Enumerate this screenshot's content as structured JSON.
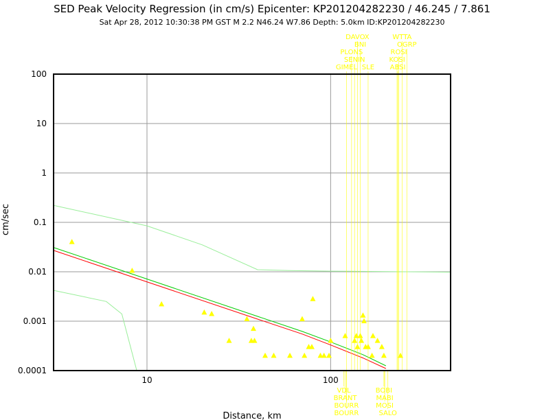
{
  "chart_data": {
    "type": "scatter",
    "title": "SED Peak Velocity Regression (in cm/s) Epicenter: KP201204282230 / 46.245 / 7.861",
    "subtitle": "Sat Apr 28, 2012 10:30:38 PM GST   M 2.2   N46.24 W7.86   Depth: 5.0km   ID:KP201204282230",
    "xlabel": "Distance, km",
    "ylabel": "cm/sec",
    "x_scale": "log",
    "y_scale": "log",
    "xlim": [
      3.1,
      450
    ],
    "ylim": [
      0.0001,
      100
    ],
    "grid": true,
    "x_ticks": [
      {
        "v": 10,
        "label": "10"
      },
      {
        "v": 100,
        "label": "100"
      }
    ],
    "y_ticks": [
      {
        "v": 100,
        "label": "100"
      },
      {
        "v": 10,
        "label": "10"
      },
      {
        "v": 1,
        "label": "1"
      },
      {
        "v": 0.1,
        "label": "0.1"
      },
      {
        "v": 0.01,
        "label": "0.01"
      },
      {
        "v": 0.001,
        "label": "0.001"
      },
      {
        "v": 0.0001,
        "label": "0.0001"
      }
    ],
    "points": [
      [
        3.9,
        0.04
      ],
      [
        8.3,
        0.0105
      ],
      [
        12,
        0.0022
      ],
      [
        20.5,
        0.0015
      ],
      [
        22.5,
        0.0014
      ],
      [
        28,
        0.0004
      ],
      [
        35,
        0.0011
      ],
      [
        37,
        0.0004
      ],
      [
        38,
        0.0007
      ],
      [
        38.5,
        0.0004
      ],
      [
        44,
        0.0002
      ],
      [
        49,
        0.0002
      ],
      [
        60,
        0.0002
      ],
      [
        70,
        0.0011
      ],
      [
        72,
        0.0002
      ],
      [
        76,
        0.0003
      ],
      [
        79,
        0.0003
      ],
      [
        80,
        0.0028
      ],
      [
        88,
        0.0002
      ],
      [
        92,
        0.0002
      ],
      [
        98,
        0.0002
      ],
      [
        100,
        0.0004
      ],
      [
        120,
        0.0005
      ],
      [
        135,
        0.0004
      ],
      [
        138,
        0.0005
      ],
      [
        140,
        0.0003
      ],
      [
        145,
        0.0005
      ],
      [
        147,
        0.0004
      ],
      [
        150,
        0.0013
      ],
      [
        152,
        0.001
      ],
      [
        155,
        0.0003
      ],
      [
        160,
        0.0003
      ],
      [
        168,
        0.0002
      ],
      [
        170,
        0.0005
      ],
      [
        180,
        0.0004
      ],
      [
        190,
        0.0003
      ],
      [
        195,
        0.0002
      ],
      [
        240,
        0.0002
      ]
    ],
    "series": [
      {
        "color": "#ff0000",
        "x": [
          3.1,
          40,
          70,
          100,
          150,
          200
        ],
        "y": [
          0.027,
          0.0011,
          0.00055,
          0.00033,
          0.00018,
          0.00011
        ]
      },
      {
        "color": "#00cc00",
        "x": [
          3.1,
          40,
          70,
          100,
          150,
          200
        ],
        "y": [
          0.031,
          0.00125,
          0.00062,
          0.00038,
          0.00021,
          0.000125
        ]
      },
      {
        "color": "#99ee99",
        "x": [
          3.1,
          10,
          20,
          40,
          60,
          100,
          200,
          450
        ],
        "y": [
          0.22,
          0.085,
          0.035,
          0.011,
          0.0106,
          0.0103,
          0.0101,
          0.0098
        ]
      },
      {
        "color": "#99ee99",
        "x": [
          3.1,
          6,
          7.3,
          8.8
        ],
        "y": [
          0.0042,
          0.0025,
          0.0014,
          0.0001
        ]
      }
    ],
    "top_stations": [
      {
        "label": "DAVOX",
        "x": 140,
        "row": 0
      },
      {
        "label": "WTTA",
        "x": 245,
        "row": 0
      },
      {
        "label": "BNI",
        "x": 145,
        "row": 1
      },
      {
        "label": "OGRP",
        "x": 260,
        "row": 1
      },
      {
        "label": "PLONS",
        "x": 130,
        "row": 2
      },
      {
        "label": "ROSI",
        "x": 235,
        "row": 2
      },
      {
        "label": "SENIN",
        "x": 135,
        "row": 3
      },
      {
        "label": "KOSI",
        "x": 230,
        "row": 3
      },
      {
        "label": "GIMEL",
        "x": 122,
        "row": 4
      },
      {
        "label": "SLE",
        "x": 160,
        "row": 4
      },
      {
        "label": "ABSI",
        "x": 232,
        "row": 4
      }
    ],
    "bottom_stations": [
      {
        "label": "VDL",
        "x": 118,
        "row": 0
      },
      {
        "label": "BOBI",
        "x": 195,
        "row": 0
      },
      {
        "label": "BRANT",
        "x": 120,
        "row": 1
      },
      {
        "label": "MABI",
        "x": 197,
        "row": 1
      },
      {
        "label": "BOURR",
        "x": 122,
        "row": 2
      },
      {
        "label": "MOSI",
        "x": 197,
        "row": 2
      },
      {
        "label": "BOURR",
        "x": 122,
        "row": 3
      },
      {
        "label": "SALO",
        "x": 205,
        "row": 3
      }
    ],
    "marker_color": "#ffff00"
  }
}
